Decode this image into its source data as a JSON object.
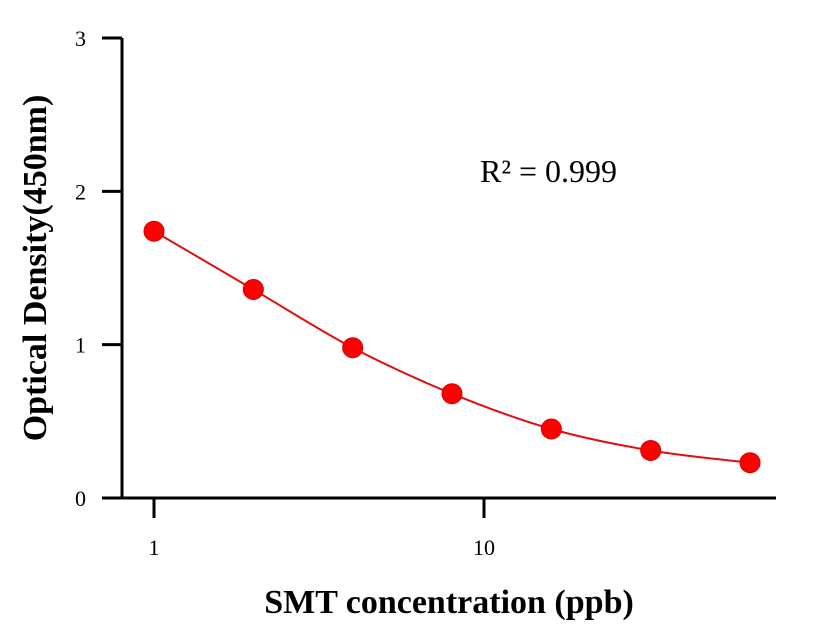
{
  "chart_data": {
    "type": "scatter",
    "xlabel": "SMT concentration (ppb)",
    "ylabel": "Optical Density(450nm)",
    "x_scale": "log",
    "xlim": [
      0.78,
      70
    ],
    "ylim": [
      0,
      3
    ],
    "x_ticks": [
      1,
      10
    ],
    "x_tick_labels": [
      "1",
      "10"
    ],
    "y_ticks": [
      0,
      1,
      2,
      3
    ],
    "y_tick_labels": [
      "0",
      "1",
      "2",
      "3"
    ],
    "annotation": "R² = 0.999",
    "grid": false,
    "series": [
      {
        "x": [
          1,
          2,
          4,
          8,
          16,
          32,
          64
        ],
        "y": [
          1.74,
          1.36,
          0.98,
          0.68,
          0.45,
          0.31,
          0.23
        ],
        "color": "#ff0000",
        "fit_curve": true
      }
    ]
  }
}
